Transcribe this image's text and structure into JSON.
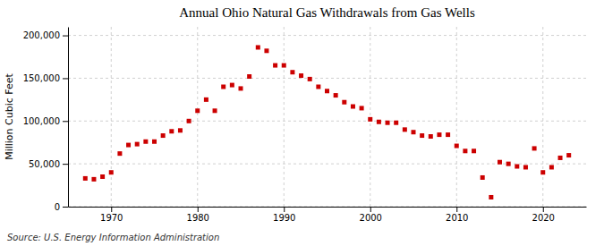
{
  "chart_data": {
    "type": "scatter",
    "title": "Annual Ohio Natural Gas Withdrawals from Gas Wells",
    "ylabel": "Million Cubic Feet",
    "source": "Source: U.S. Energy Information Administration",
    "color": "#cc0000",
    "marker": "square",
    "x": [
      1967,
      1968,
      1969,
      1970,
      1971,
      1972,
      1973,
      1974,
      1975,
      1976,
      1977,
      1978,
      1979,
      1980,
      1981,
      1982,
      1983,
      1984,
      1985,
      1986,
      1987,
      1988,
      1989,
      1990,
      1991,
      1992,
      1993,
      1994,
      1995,
      1996,
      1997,
      1998,
      1999,
      2000,
      2001,
      2002,
      2003,
      2004,
      2005,
      2006,
      2007,
      2008,
      2009,
      2010,
      2011,
      2012,
      2013,
      2014,
      2015,
      2016,
      2017,
      2018,
      2019,
      2020,
      2021,
      2022,
      2023
    ],
    "values": [
      33000,
      32000,
      35000,
      40000,
      62000,
      72000,
      73000,
      76000,
      76000,
      83000,
      88000,
      89000,
      100000,
      112000,
      125000,
      112000,
      140000,
      142000,
      138000,
      152000,
      186000,
      182000,
      165000,
      165000,
      157000,
      153000,
      149000,
      140000,
      135000,
      130000,
      122000,
      117000,
      115000,
      102000,
      99000,
      98000,
      98000,
      90000,
      87000,
      83000,
      82000,
      84000,
      84000,
      71000,
      65000,
      65000,
      34000,
      11000,
      52000,
      50000,
      47000,
      46000,
      68000,
      40000,
      46000,
      57000,
      60000
    ],
    "xlim": [
      1965,
      2025
    ],
    "ylim": [
      0,
      210000
    ],
    "xticks": [
      1970,
      1980,
      1990,
      2000,
      2010,
      2020
    ],
    "yticks": [
      0,
      {
        "value": 50000,
        "label": "50,000"
      },
      {
        "value": 100000,
        "label": "100,000"
      },
      {
        "value": 150000,
        "label": "150,000"
      },
      {
        "value": 200000,
        "label": "200,000"
      }
    ],
    "grid": true
  }
}
